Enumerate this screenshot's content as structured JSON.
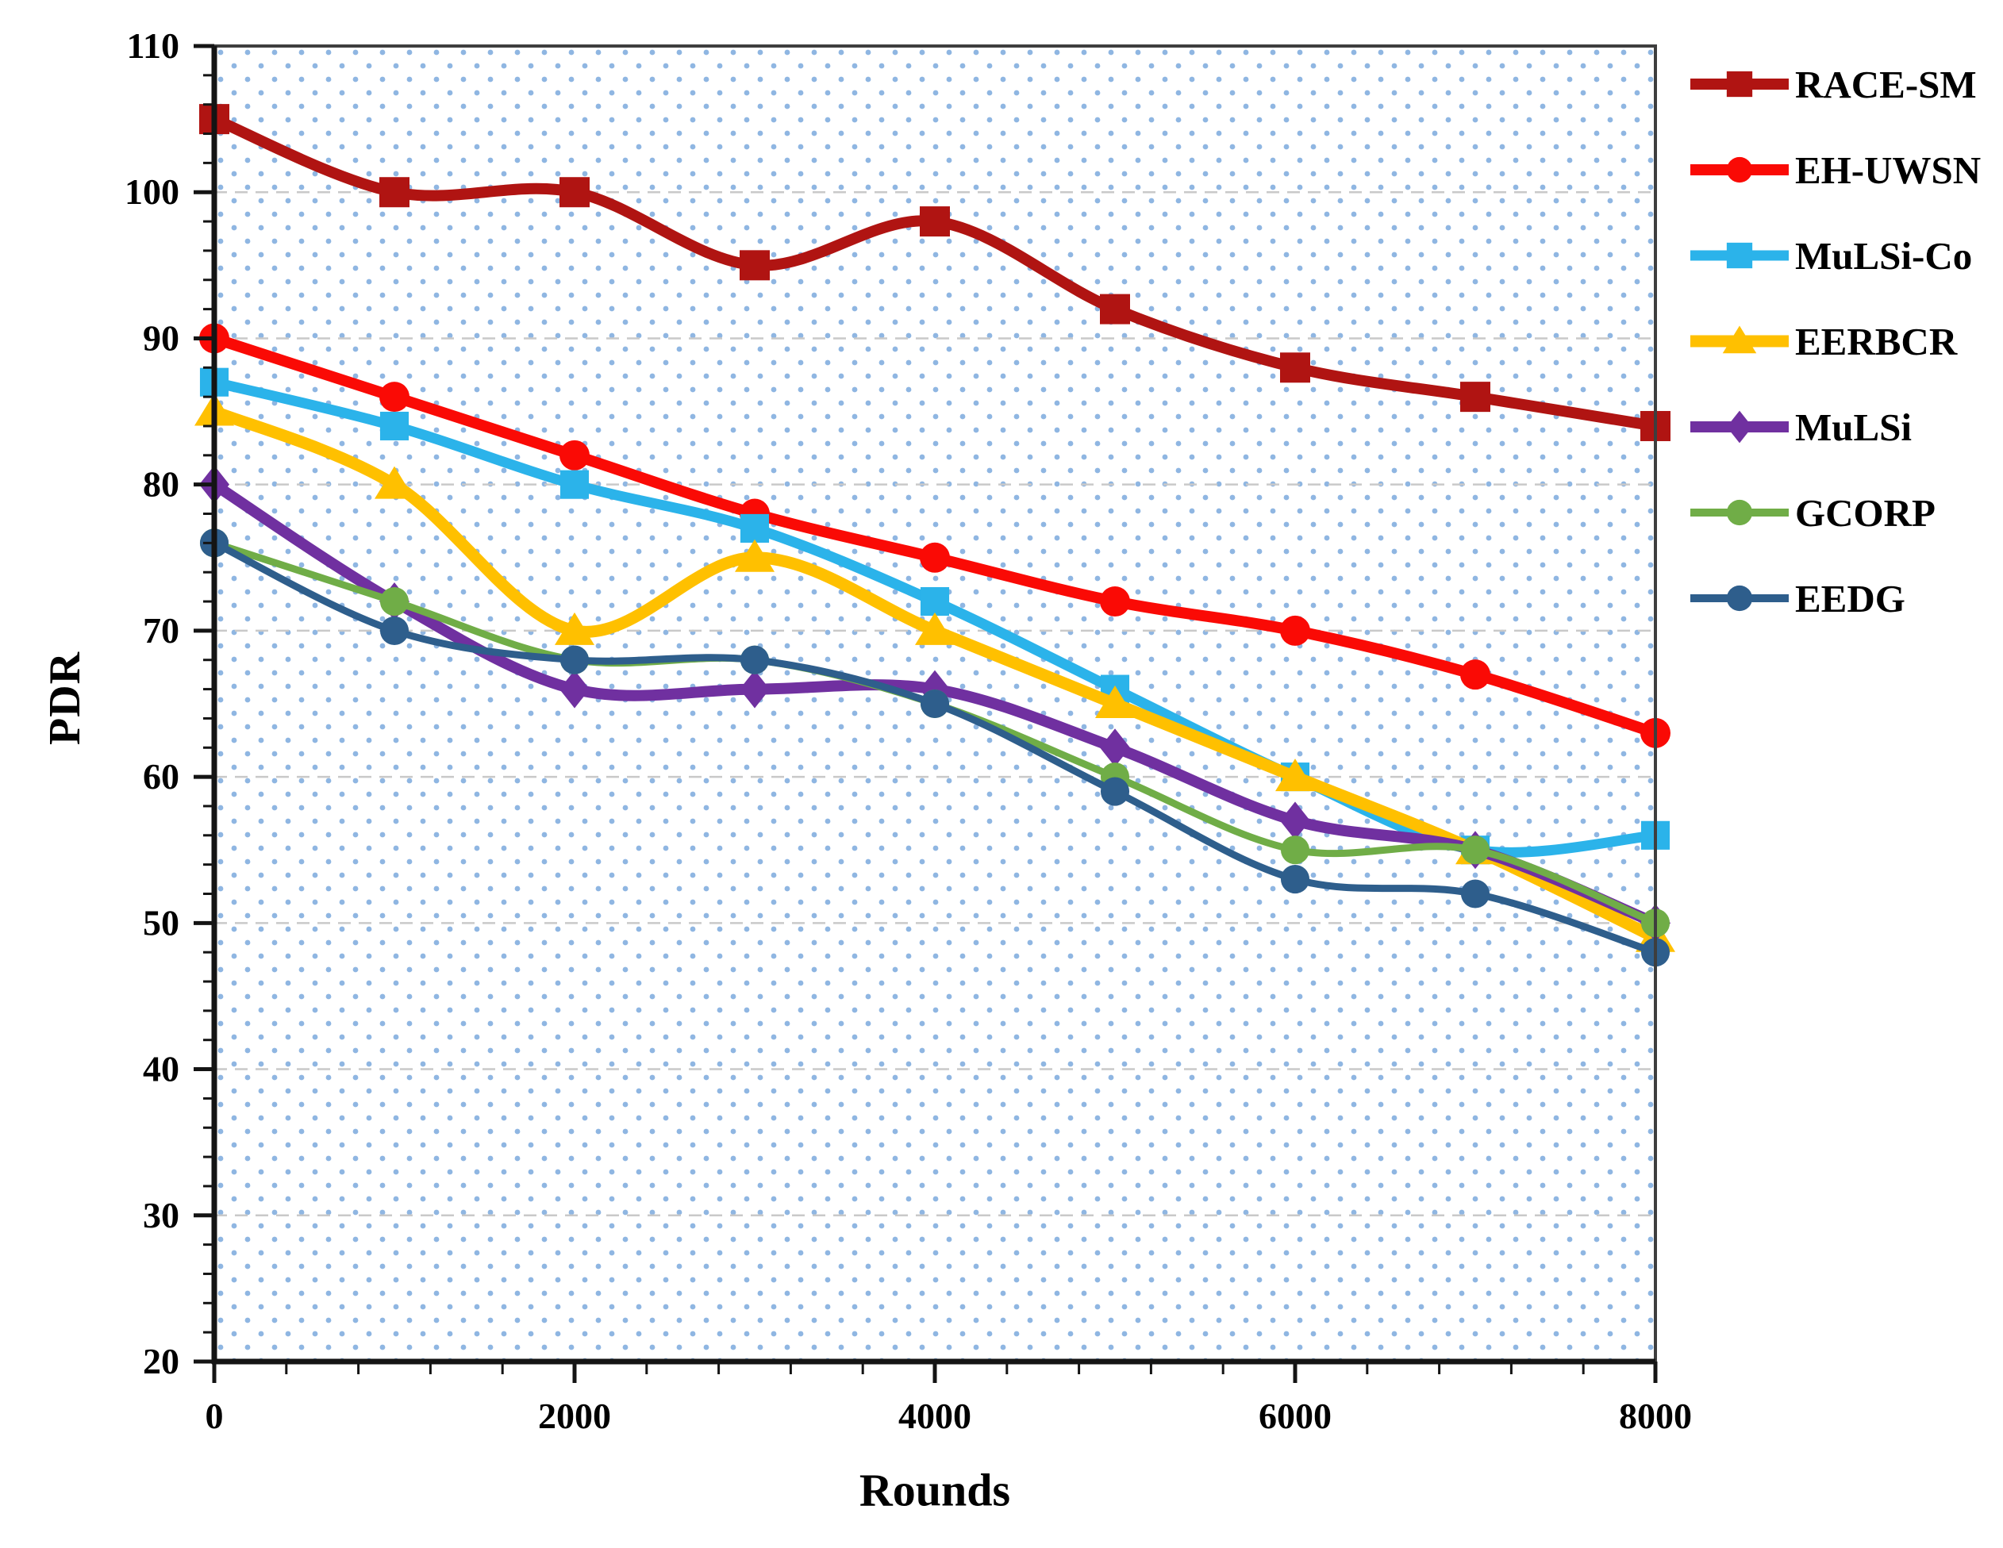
{
  "chart_data": {
    "type": "line",
    "title": "",
    "xlabel": "Rounds",
    "ylabel": "PDR",
    "xlim": [
      0,
      8000
    ],
    "ylim": [
      20,
      110
    ],
    "x_ticks": [
      0,
      2000,
      4000,
      6000,
      8000
    ],
    "x_minor_step": 400,
    "y_ticks": [
      20,
      30,
      40,
      50,
      60,
      70,
      80,
      90,
      100,
      110
    ],
    "y_minor_step": 2,
    "grid": "horizontal-dashed",
    "gridline_values": [
      30,
      40,
      50,
      60,
      70,
      80,
      90,
      100
    ],
    "legend_position": "right-outside",
    "plot_background": "white-with-light-blue-dot-lattice",
    "x": [
      0,
      1000,
      2000,
      3000,
      4000,
      5000,
      6000,
      7000,
      8000
    ],
    "series": [
      {
        "name": "RACE-SM",
        "color": "#B01412",
        "marker": "square",
        "line_width": 14,
        "values": [
          105,
          100,
          100,
          95,
          98,
          92,
          88,
          86,
          84
        ]
      },
      {
        "name": "EH-UWSN",
        "color": "#FA0A05",
        "marker": "circle",
        "line_width": 14,
        "values": [
          90,
          86,
          82,
          78,
          75,
          72,
          70,
          67,
          63
        ]
      },
      {
        "name": "MuLSi-Co",
        "color": "#2BB3EA",
        "marker": "square",
        "line_width": 13,
        "values": [
          87,
          84,
          80,
          77,
          72,
          66,
          60,
          55,
          56
        ]
      },
      {
        "name": "EERBCR",
        "color": "#FFC000",
        "marker": "triangle",
        "line_width": 15,
        "values": [
          85,
          80,
          70,
          75,
          70,
          65,
          60,
          55,
          49
        ]
      },
      {
        "name": "MuLSi",
        "color": "#7030A0",
        "marker": "diamond",
        "line_width": 14,
        "values": [
          80,
          72,
          66,
          66,
          66,
          62,
          57,
          55,
          50
        ]
      },
      {
        "name": "GCORP",
        "color": "#70AD47",
        "marker": "circle",
        "line_width": 9,
        "values": [
          76,
          72,
          68,
          68,
          65,
          60,
          55,
          55,
          50
        ]
      },
      {
        "name": "EEDG",
        "color": "#2E5E8C",
        "marker": "circle",
        "line_width": 9,
        "values": [
          76,
          70,
          68,
          68,
          65,
          59,
          53,
          52,
          48
        ]
      }
    ],
    "colors": {
      "gridline": "#C9C9C9",
      "frame": "#3E3E3E",
      "axis": "#141414",
      "dot_pattern": "#8FB6E2",
      "text": "#000000"
    }
  }
}
